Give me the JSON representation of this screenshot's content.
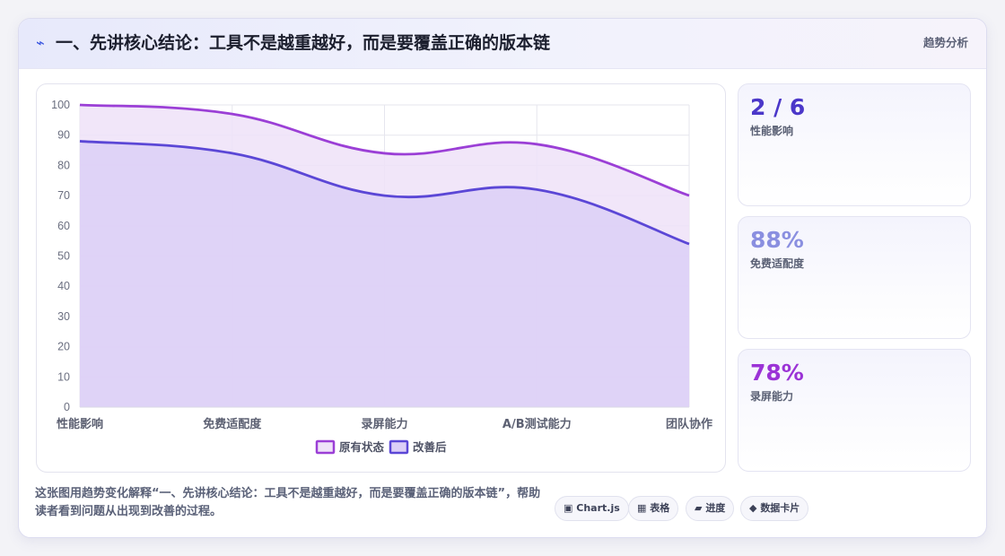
{
  "header": {
    "icon": "lightning-icon",
    "title": "一、先讲核心结论：工具不是越重越好，而是要覆盖正确的版本链",
    "tag": "趋势分析"
  },
  "chart_data": {
    "type": "area",
    "categories": [
      "性能影响",
      "免费适配度",
      "录屏能力",
      "A/B测试能力",
      "团队协作"
    ],
    "series": [
      {
        "name": "原有状态",
        "values": [
          100,
          97,
          84,
          87,
          70
        ],
        "color": "#9b3fd6",
        "fill": "#efe2f8"
      },
      {
        "name": "改善后",
        "values": [
          88,
          84,
          70,
          72,
          54
        ],
        "color": "#5b47d6",
        "fill": "#dccff7"
      }
    ],
    "ylim": [
      0,
      100
    ],
    "yticks": [
      0,
      10,
      20,
      30,
      40,
      50,
      60,
      70,
      80,
      90,
      100
    ],
    "grid": true,
    "legend": "bottom"
  },
  "stats": [
    {
      "value": "2 / 6",
      "label": "性能影响",
      "color": "#4b37c9"
    },
    {
      "value": "88%",
      "label": "免费适配度",
      "color": "#8a8fe0"
    },
    {
      "value": "78%",
      "label": "录屏能力",
      "color": "#9b33d6"
    }
  ],
  "footer": {
    "text": "这张图用趋势变化解释“一、先讲核心结论：工具不是越重越好，而是要覆盖正确的版本链”，帮助读者看到问题从出现到改善的过程。",
    "chips": [
      {
        "icon": "chart-icon",
        "glyph": "▣",
        "label": "Chart.js"
      },
      {
        "icon": "table-icon",
        "glyph": "▦",
        "label": "表格"
      },
      {
        "icon": "progress-icon",
        "glyph": "▰",
        "label": "进度"
      },
      {
        "icon": "diamond-icon",
        "glyph": "◆",
        "label": "数据卡片"
      }
    ]
  }
}
